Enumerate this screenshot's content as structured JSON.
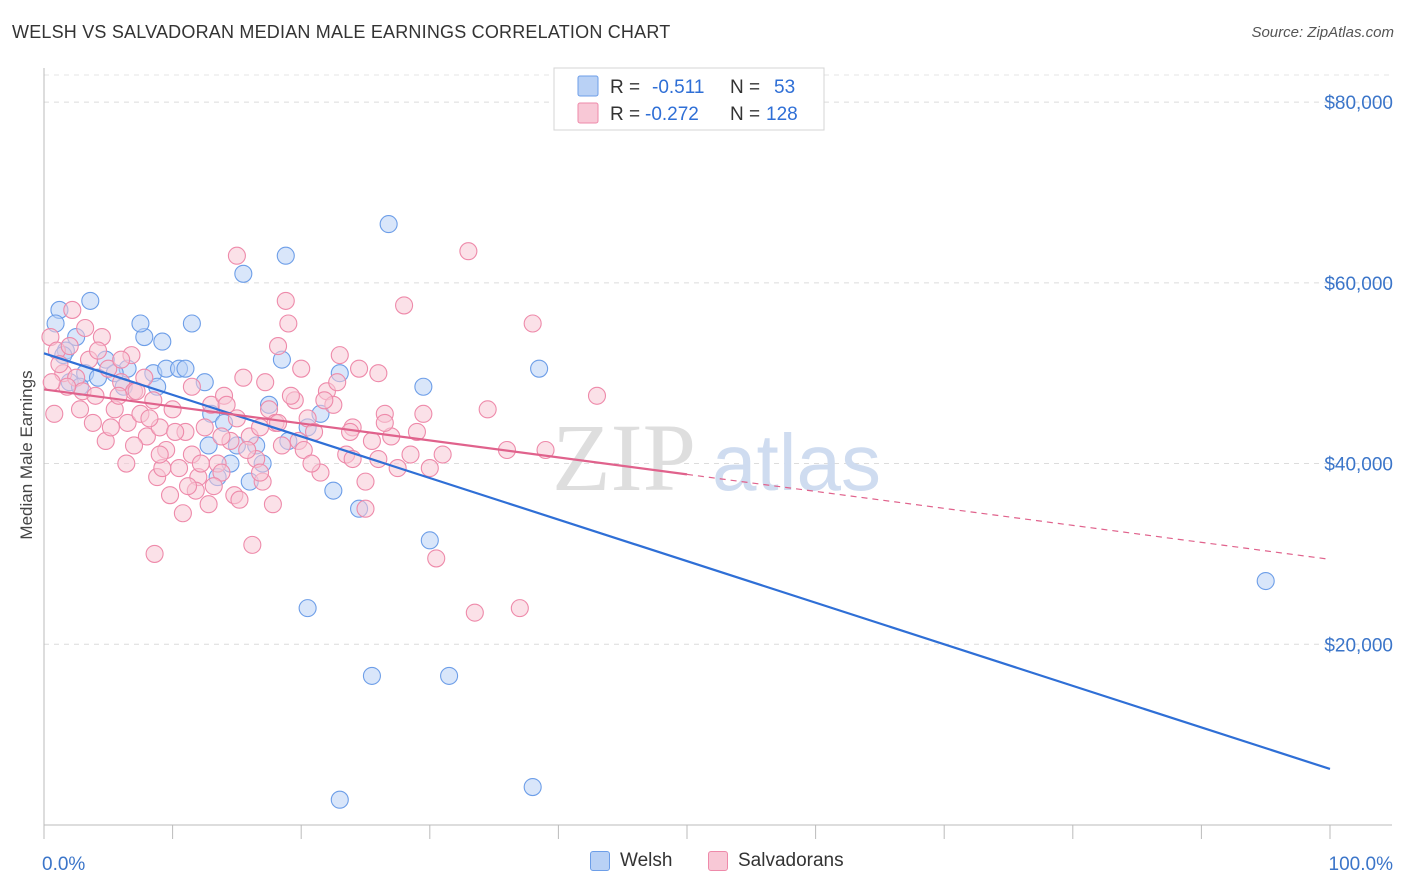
{
  "title": "WELSH VS SALVADORAN MEDIAN MALE EARNINGS CORRELATION CHART",
  "source": "Source: ZipAtlas.com",
  "colors": {
    "welsh": "#6d9ee8",
    "welsh_fill": "#b9d1f5",
    "welsh_line": "#2f6fd6",
    "salvadoran": "#ee8aaa",
    "salvadoran_fill": "#f8c8d6",
    "salvadoran_line": "#e0628c",
    "axis_text": "#3b75c9"
  },
  "legend": {
    "r_label": "R =",
    "n_label": "N =",
    "rows": [
      {
        "r": "-0.511",
        "n": "53"
      },
      {
        "r": "-0.272",
        "n": "128"
      }
    ]
  },
  "watermark": {
    "zip": "ZIP",
    "atlas": "atlas"
  },
  "chart_data": {
    "type": "scatter",
    "title": "WELSH VS SALVADORAN MEDIAN MALE EARNINGS CORRELATION CHART",
    "xlabel": "",
    "ylabel": "Median Male Earnings",
    "xlim": [
      0,
      100
    ],
    "ylim": [
      0,
      83000
    ],
    "x_tick_labels": [
      "0.0%",
      "100.0%"
    ],
    "y_ticks": [
      20000,
      40000,
      60000,
      80000
    ],
    "y_tick_labels": [
      "$20,000",
      "$40,000",
      "$60,000",
      "$80,000"
    ],
    "grid": true,
    "legend_position": "top-center",
    "series": [
      {
        "name": "Welsh",
        "r": -0.511,
        "n": 53,
        "trend": {
          "x": [
            0,
            100
          ],
          "y": [
            52200,
            6200
          ]
        },
        "points": [
          [
            1.2,
            57000
          ],
          [
            0.9,
            55500
          ],
          [
            1.7,
            52500
          ],
          [
            2.5,
            54000
          ],
          [
            3.6,
            58000
          ],
          [
            4.8,
            51500
          ],
          [
            2.0,
            49000
          ],
          [
            3.2,
            50000
          ],
          [
            6.5,
            50500
          ],
          [
            7.8,
            54000
          ],
          [
            8.5,
            50000
          ],
          [
            9.5,
            50500
          ],
          [
            11.5,
            55500
          ],
          [
            10.5,
            50500
          ],
          [
            12.5,
            49000
          ],
          [
            13.0,
            45500
          ],
          [
            12.8,
            42000
          ],
          [
            14.5,
            40000
          ],
          [
            13.5,
            38500
          ],
          [
            16.0,
            38000
          ],
          [
            16.5,
            42000
          ],
          [
            19.0,
            42500
          ],
          [
            17.5,
            46500
          ],
          [
            15.5,
            61000
          ],
          [
            18.8,
            63000
          ],
          [
            18.5,
            51500
          ],
          [
            20.5,
            44000
          ],
          [
            22.5,
            37000
          ],
          [
            23.0,
            50000
          ],
          [
            24.5,
            35000
          ],
          [
            26.8,
            66500
          ],
          [
            29.5,
            48500
          ],
          [
            30.0,
            31500
          ],
          [
            31.5,
            16500
          ],
          [
            38.5,
            50500
          ],
          [
            20.5,
            24000
          ],
          [
            25.5,
            16500
          ],
          [
            23.0,
            2800
          ],
          [
            38.0,
            4200
          ],
          [
            95.0,
            27000
          ],
          [
            5.5,
            50000
          ],
          [
            6.2,
            48500
          ],
          [
            7.5,
            55500
          ],
          [
            8.8,
            48500
          ],
          [
            11.0,
            50500
          ],
          [
            4.2,
            49500
          ],
          [
            2.8,
            48500
          ],
          [
            1.5,
            52000
          ],
          [
            9.2,
            53500
          ],
          [
            15.0,
            42000
          ],
          [
            17.0,
            40000
          ],
          [
            21.5,
            45500
          ],
          [
            14.0,
            44500
          ]
        ]
      },
      {
        "name": "Salvadorans",
        "r": -0.272,
        "n": 128,
        "trend": {
          "x": [
            0,
            50
          ],
          "y": [
            48200,
            38800
          ]
        },
        "trend_dashed": {
          "x": [
            50,
            100
          ],
          "y": [
            38800,
            29400
          ]
        },
        "points": [
          [
            0.5,
            54000
          ],
          [
            1.0,
            52500
          ],
          [
            1.5,
            50000
          ],
          [
            2.0,
            53000
          ],
          [
            2.5,
            49500
          ],
          [
            3.0,
            48000
          ],
          [
            3.5,
            51500
          ],
          [
            4.0,
            47500
          ],
          [
            4.5,
            54000
          ],
          [
            5.0,
            50500
          ],
          [
            5.5,
            46000
          ],
          [
            6.0,
            49000
          ],
          [
            6.5,
            44500
          ],
          [
            7.0,
            48000
          ],
          [
            7.5,
            45500
          ],
          [
            8.0,
            43000
          ],
          [
            8.5,
            47000
          ],
          [
            9.0,
            44000
          ],
          [
            9.5,
            41500
          ],
          [
            10.0,
            46000
          ],
          [
            10.5,
            39500
          ],
          [
            11.0,
            43500
          ],
          [
            11.5,
            41000
          ],
          [
            12.0,
            38500
          ],
          [
            12.5,
            44000
          ],
          [
            13.0,
            46500
          ],
          [
            13.5,
            40000
          ],
          [
            14.0,
            47500
          ],
          [
            14.5,
            42500
          ],
          [
            15.0,
            45000
          ],
          [
            15.5,
            49500
          ],
          [
            16.0,
            43000
          ],
          [
            16.5,
            40500
          ],
          [
            17.0,
            38000
          ],
          [
            17.5,
            46000
          ],
          [
            18.0,
            44500
          ],
          [
            18.5,
            42000
          ],
          [
            19.0,
            55500
          ],
          [
            19.5,
            47000
          ],
          [
            20.0,
            50500
          ],
          [
            20.5,
            45000
          ],
          [
            21.0,
            43500
          ],
          [
            21.5,
            39000
          ],
          [
            22.0,
            48000
          ],
          [
            22.5,
            46500
          ],
          [
            23.0,
            52000
          ],
          [
            23.5,
            41000
          ],
          [
            24.0,
            44000
          ],
          [
            24.5,
            50500
          ],
          [
            25.0,
            38000
          ],
          [
            25.5,
            42500
          ],
          [
            26.0,
            40500
          ],
          [
            26.5,
            45500
          ],
          [
            27.0,
            43000
          ],
          [
            27.5,
            39500
          ],
          [
            28.0,
            57500
          ],
          [
            29.0,
            43500
          ],
          [
            30.0,
            39500
          ],
          [
            31.0,
            41000
          ],
          [
            33.0,
            63500
          ],
          [
            34.5,
            46000
          ],
          [
            36.0,
            41500
          ],
          [
            38.0,
            55500
          ],
          [
            39.0,
            41500
          ],
          [
            43.0,
            47500
          ],
          [
            0.8,
            45500
          ],
          [
            1.8,
            48500
          ],
          [
            2.8,
            46000
          ],
          [
            3.8,
            44500
          ],
          [
            4.8,
            42500
          ],
          [
            5.8,
            47500
          ],
          [
            6.8,
            52000
          ],
          [
            7.8,
            49500
          ],
          [
            8.8,
            38500
          ],
          [
            9.8,
            36500
          ],
          [
            10.8,
            34500
          ],
          [
            11.8,
            37000
          ],
          [
            12.8,
            35500
          ],
          [
            13.8,
            39000
          ],
          [
            14.8,
            36500
          ],
          [
            15.8,
            41500
          ],
          [
            16.8,
            44000
          ],
          [
            17.8,
            35500
          ],
          [
            18.8,
            58000
          ],
          [
            19.8,
            42500
          ],
          [
            6.0,
            51500
          ],
          [
            7.2,
            48000
          ],
          [
            8.2,
            45000
          ],
          [
            9.2,
            39500
          ],
          [
            10.2,
            43500
          ],
          [
            11.2,
            37500
          ],
          [
            12.2,
            40000
          ],
          [
            13.2,
            37500
          ],
          [
            14.2,
            46500
          ],
          [
            15.2,
            36000
          ],
          [
            16.2,
            31000
          ],
          [
            17.2,
            49000
          ],
          [
            18.2,
            53000
          ],
          [
            19.2,
            47500
          ],
          [
            20.2,
            41500
          ],
          [
            8.6,
            30000
          ],
          [
            15.0,
            63000
          ],
          [
            24.0,
            40500
          ],
          [
            25.0,
            35000
          ],
          [
            26.5,
            44500
          ],
          [
            28.5,
            41000
          ],
          [
            30.5,
            29500
          ],
          [
            33.5,
            23500
          ],
          [
            37.0,
            24000
          ],
          [
            22.8,
            49000
          ],
          [
            3.2,
            55000
          ],
          [
            4.2,
            52500
          ],
          [
            2.2,
            57000
          ],
          [
            1.2,
            51000
          ],
          [
            0.6,
            49000
          ],
          [
            5.2,
            44000
          ],
          [
            6.4,
            40000
          ],
          [
            7.0,
            42000
          ],
          [
            9.0,
            41000
          ],
          [
            11.5,
            48500
          ],
          [
            13.8,
            43000
          ],
          [
            16.8,
            39000
          ],
          [
            18.2,
            44500
          ],
          [
            20.8,
            40000
          ],
          [
            21.8,
            47000
          ],
          [
            23.8,
            43500
          ],
          [
            26.0,
            50000
          ],
          [
            29.5,
            45500
          ]
        ]
      }
    ]
  }
}
